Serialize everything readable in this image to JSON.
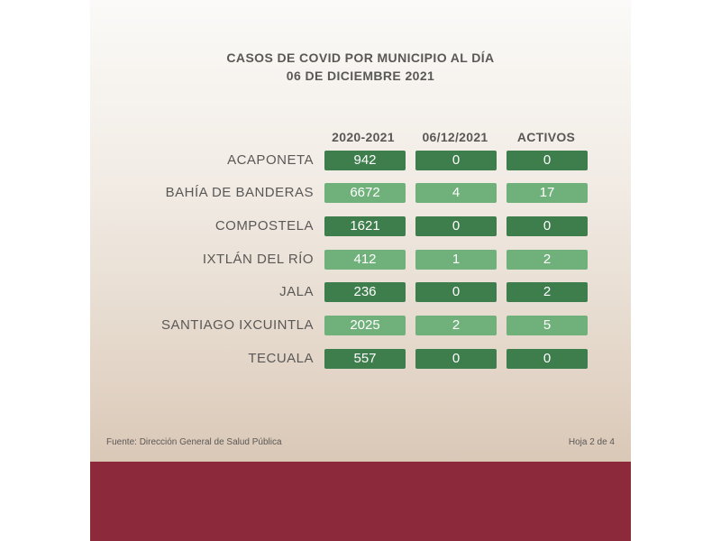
{
  "title_line1": "CASOS DE COVID POR MUNICIPIO AL DÍA",
  "title_line2": "06 DE DICIEMBRE 2021",
  "columns": [
    "2020-2021",
    "06/12/2021",
    "ACTIVOS"
  ],
  "rows": [
    {
      "municipio": "ACAPONETA",
      "values": [
        "942",
        "0",
        "0"
      ]
    },
    {
      "municipio": "BAHÍA DE BANDERAS",
      "values": [
        "6672",
        "4",
        "17"
      ]
    },
    {
      "municipio": "COMPOSTELA",
      "values": [
        "1621",
        "0",
        "0"
      ]
    },
    {
      "municipio": "IXTLÁN DEL RÍO",
      "values": [
        "412",
        "1",
        "2"
      ]
    },
    {
      "municipio": "JALA",
      "values": [
        "236",
        "0",
        "2"
      ]
    },
    {
      "municipio": "SANTIAGO IXCUINTLA",
      "values": [
        "2025",
        "2",
        "5"
      ]
    },
    {
      "municipio": "TECUALA",
      "values": [
        "557",
        "0",
        "0"
      ]
    }
  ],
  "source": "Fuente: Dirección General de Salud Pública",
  "page": "Hoja 2 de 4",
  "colors": {
    "dark_cell": "#3e7d4c",
    "light_cell": "#70b07a",
    "footer_band": "#8c2a3c"
  }
}
